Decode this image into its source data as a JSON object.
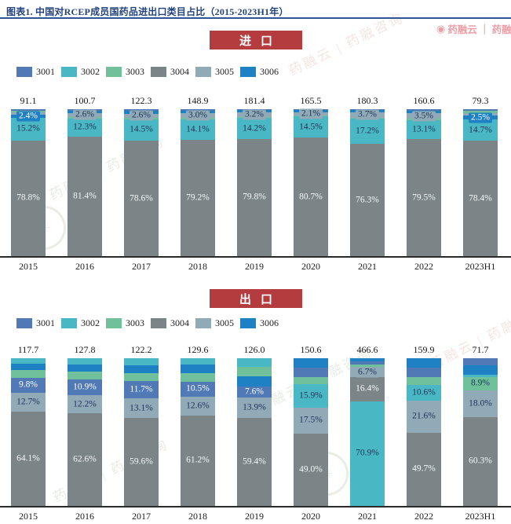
{
  "title": "图表1. 中国对RCEP成员国药品进出口类目占比（2015-2023H1年）",
  "watermarks": {
    "brand_header": "药融云 ｜ 药融咨询",
    "diagonal": "药融云 | 药融咨询",
    "stamp_glyph": "✳"
  },
  "colors": {
    "3001": "#5079b5",
    "3002": "#4ab7c4",
    "3003": "#6fc09b",
    "3004": "#7b8588",
    "3005": "#90aab8",
    "3006": "#1e81c4"
  },
  "label_text_colors": {
    "3001": "#ffffff",
    "3002": "#1d3557",
    "3003": "#1d3557",
    "3004": "#f5f7f8",
    "3005": "#1d3557",
    "3006": "#ffffff"
  },
  "chart_data": [
    {
      "type": "bar",
      "stacked": true,
      "percent_stacked": true,
      "banner": "进口",
      "legend": [
        "3001",
        "3002",
        "3003",
        "3004",
        "3005",
        "3006"
      ],
      "categories": [
        "2015",
        "2016",
        "2017",
        "2018",
        "2019",
        "2020",
        "2021",
        "2022",
        "2023H1"
      ],
      "totals": [
        "91.1",
        "100.7",
        "122.3",
        "148.9",
        "181.4",
        "165.5",
        "180.3",
        "160.6",
        "79.3"
      ],
      "series": [
        {
          "name": "3001",
          "values": [
            0.8,
            0.9,
            1.1,
            0.9,
            0.6,
            0.6,
            0.6,
            0.9,
            1.0
          ]
        },
        {
          "name": "3002",
          "values": [
            15.2,
            12.3,
            14.5,
            14.1,
            14.2,
            14.5,
            17.2,
            13.1,
            14.7
          ]
        },
        {
          "name": "3003",
          "values": [
            1.2,
            1.0,
            1.2,
            1.0,
            0.8,
            0.7,
            0.8,
            1.0,
            1.4
          ]
        },
        {
          "name": "3004",
          "values": [
            78.8,
            81.4,
            78.6,
            79.2,
            79.8,
            80.7,
            76.3,
            79.5,
            78.4
          ]
        },
        {
          "name": "3005",
          "values": [
            1.6,
            2.6,
            2.6,
            3.0,
            3.2,
            2.1,
            3.7,
            3.5,
            2.0
          ]
        },
        {
          "name": "3006",
          "values": [
            2.4,
            1.8,
            2.0,
            1.8,
            1.4,
            1.4,
            1.4,
            2.0,
            2.5
          ]
        }
      ],
      "bars": [
        {
          "year": "2015",
          "total": "91.1",
          "segments": [
            {
              "s": "3004",
              "v": 78.8,
              "label": "78.8%"
            },
            {
              "s": "3002",
              "v": 15.2,
              "label": "15.2%"
            },
            {
              "s": "3006",
              "v": 2.4,
              "label": "2.4%"
            },
            {
              "s": "3005",
              "v": 1.6,
              "label": ""
            },
            {
              "s": "3003",
              "v": 1.2,
              "label": ""
            },
            {
              "s": "3001",
              "v": 0.8,
              "label": ""
            }
          ]
        },
        {
          "year": "2016",
          "total": "100.7",
          "segments": [
            {
              "s": "3004",
              "v": 81.4,
              "label": "81.4%"
            },
            {
              "s": "3002",
              "v": 12.3,
              "label": "12.3%"
            },
            {
              "s": "3003",
              "v": 1.0,
              "label": ""
            },
            {
              "s": "3005",
              "v": 2.6,
              "label": "2.6%"
            },
            {
              "s": "3006",
              "v": 1.8,
              "label": ""
            },
            {
              "s": "3001",
              "v": 0.9,
              "label": ""
            }
          ]
        },
        {
          "year": "2017",
          "total": "122.3",
          "segments": [
            {
              "s": "3004",
              "v": 78.6,
              "label": "78.6%"
            },
            {
              "s": "3002",
              "v": 14.5,
              "label": "14.5%"
            },
            {
              "s": "3003",
              "v": 1.2,
              "label": ""
            },
            {
              "s": "3005",
              "v": 2.6,
              "label": "2.6%"
            },
            {
              "s": "3006",
              "v": 2.0,
              "label": ""
            },
            {
              "s": "3001",
              "v": 1.1,
              "label": ""
            }
          ]
        },
        {
          "year": "2018",
          "total": "148.9",
          "segments": [
            {
              "s": "3004",
              "v": 79.2,
              "label": "79.2%"
            },
            {
              "s": "3002",
              "v": 14.1,
              "label": "14.1%"
            },
            {
              "s": "3003",
              "v": 1.0,
              "label": ""
            },
            {
              "s": "3005",
              "v": 3.0,
              "label": "3.0%"
            },
            {
              "s": "3006",
              "v": 1.8,
              "label": ""
            },
            {
              "s": "3001",
              "v": 0.9,
              "label": ""
            }
          ]
        },
        {
          "year": "2019",
          "total": "181.4",
          "segments": [
            {
              "s": "3004",
              "v": 79.8,
              "label": "79.8%"
            },
            {
              "s": "3002",
              "v": 14.2,
              "label": "14.2%"
            },
            {
              "s": "3003",
              "v": 0.8,
              "label": ""
            },
            {
              "s": "3005",
              "v": 3.2,
              "label": "3.2%"
            },
            {
              "s": "3006",
              "v": 1.4,
              "label": ""
            },
            {
              "s": "3001",
              "v": 0.6,
              "label": ""
            }
          ]
        },
        {
          "year": "2020",
          "total": "165.5",
          "segments": [
            {
              "s": "3004",
              "v": 80.7,
              "label": "80.7%"
            },
            {
              "s": "3002",
              "v": 14.5,
              "label": "14.5%"
            },
            {
              "s": "3003",
              "v": 0.7,
              "label": ""
            },
            {
              "s": "3005",
              "v": 2.1,
              "label": "2.1%"
            },
            {
              "s": "3006",
              "v": 1.4,
              "label": ""
            },
            {
              "s": "3001",
              "v": 0.6,
              "label": ""
            }
          ]
        },
        {
          "year": "2021",
          "total": "180.3",
          "segments": [
            {
              "s": "3004",
              "v": 76.3,
              "label": "76.3%"
            },
            {
              "s": "3002",
              "v": 17.2,
              "label": "17.2%"
            },
            {
              "s": "3003",
              "v": 0.8,
              "label": ""
            },
            {
              "s": "3005",
              "v": 3.7,
              "label": "3.7%"
            },
            {
              "s": "3006",
              "v": 1.4,
              "label": ""
            },
            {
              "s": "3001",
              "v": 0.6,
              "label": ""
            }
          ]
        },
        {
          "year": "2022",
          "total": "160.6",
          "segments": [
            {
              "s": "3004",
              "v": 79.5,
              "label": "79.5%"
            },
            {
              "s": "3002",
              "v": 13.1,
              "label": "13.1%"
            },
            {
              "s": "3003",
              "v": 1.0,
              "label": ""
            },
            {
              "s": "3005",
              "v": 3.5,
              "label": "3.5%"
            },
            {
              "s": "3006",
              "v": 2.0,
              "label": ""
            },
            {
              "s": "3001",
              "v": 0.9,
              "label": ""
            }
          ]
        },
        {
          "year": "2023H1",
          "total": "79.3",
          "segments": [
            {
              "s": "3004",
              "v": 78.4,
              "label": "78.4%"
            },
            {
              "s": "3002",
              "v": 14.7,
              "label": "14.7%"
            },
            {
              "s": "3006",
              "v": 2.5,
              "label": "2.5%"
            },
            {
              "s": "3005",
              "v": 2.0,
              "label": ""
            },
            {
              "s": "3003",
              "v": 1.4,
              "label": ""
            },
            {
              "s": "3001",
              "v": 1.0,
              "label": ""
            }
          ]
        }
      ]
    },
    {
      "type": "bar",
      "stacked": true,
      "percent_stacked": true,
      "banner": "出口",
      "legend": [
        "3001",
        "3002",
        "3003",
        "3004",
        "3005",
        "3006"
      ],
      "categories": [
        "2015",
        "2016",
        "2017",
        "2018",
        "2019",
        "2020",
        "2021",
        "2022",
        "2023H1"
      ],
      "totals": [
        "117.7",
        "127.8",
        "122.2",
        "129.6",
        "126.0",
        "150.6",
        "466.6",
        "159.9",
        "71.7"
      ],
      "series": [
        {
          "name": "3001",
          "values": [
            9.8,
            10.9,
            11.7,
            10.5,
            7.6,
            6.2,
            2.0,
            6.0,
            5.0
          ]
        },
        {
          "name": "3002",
          "values": [
            3.6,
            4.0,
            4.5,
            4.5,
            5.6,
            15.9,
            70.9,
            10.6,
            1.8
          ]
        },
        {
          "name": "3003",
          "values": [
            5.2,
            5.5,
            5.8,
            5.8,
            6.5,
            5.0,
            1.8,
            5.6,
            8.9
          ]
        },
        {
          "name": "3004",
          "values": [
            64.1,
            62.6,
            59.6,
            61.2,
            59.4,
            49.0,
            16.4,
            49.7,
            60.3
          ]
        },
        {
          "name": "3005",
          "values": [
            12.7,
            12.2,
            13.1,
            12.6,
            13.9,
            17.5,
            6.7,
            21.6,
            18.0
          ]
        },
        {
          "name": "3006",
          "values": [
            4.6,
            4.8,
            5.3,
            5.4,
            7.0,
            6.4,
            2.2,
            6.5,
            6.0
          ]
        }
      ],
      "bars": [
        {
          "year": "2015",
          "total": "117.7",
          "segments": [
            {
              "s": "3004",
              "v": 64.1,
              "label": "64.1%"
            },
            {
              "s": "3005",
              "v": 12.7,
              "label": "12.7%"
            },
            {
              "s": "3001",
              "v": 9.8,
              "label": "9.8%"
            },
            {
              "s": "3003",
              "v": 5.2,
              "label": ""
            },
            {
              "s": "3006",
              "v": 4.6,
              "label": ""
            },
            {
              "s": "3002",
              "v": 3.6,
              "label": ""
            }
          ]
        },
        {
          "year": "2016",
          "total": "127.8",
          "segments": [
            {
              "s": "3004",
              "v": 62.6,
              "label": "62.6%"
            },
            {
              "s": "3005",
              "v": 12.2,
              "label": "12.2%"
            },
            {
              "s": "3001",
              "v": 10.9,
              "label": "10.9%"
            },
            {
              "s": "3003",
              "v": 5.5,
              "label": ""
            },
            {
              "s": "3006",
              "v": 4.8,
              "label": ""
            },
            {
              "s": "3002",
              "v": 4.0,
              "label": ""
            }
          ]
        },
        {
          "year": "2017",
          "total": "122.2",
          "segments": [
            {
              "s": "3004",
              "v": 59.6,
              "label": "59.6%"
            },
            {
              "s": "3005",
              "v": 13.1,
              "label": "13.1%"
            },
            {
              "s": "3001",
              "v": 11.7,
              "label": "11.7%"
            },
            {
              "s": "3003",
              "v": 5.8,
              "label": ""
            },
            {
              "s": "3006",
              "v": 5.3,
              "label": ""
            },
            {
              "s": "3002",
              "v": 4.5,
              "label": ""
            }
          ]
        },
        {
          "year": "2018",
          "total": "129.6",
          "segments": [
            {
              "s": "3004",
              "v": 61.2,
              "label": "61.2%"
            },
            {
              "s": "3005",
              "v": 12.6,
              "label": "12.6%"
            },
            {
              "s": "3001",
              "v": 10.5,
              "label": "10.5%"
            },
            {
              "s": "3003",
              "v": 5.8,
              "label": ""
            },
            {
              "s": "3006",
              "v": 5.4,
              "label": ""
            },
            {
              "s": "3002",
              "v": 4.5,
              "label": ""
            }
          ]
        },
        {
          "year": "2019",
          "total": "126.0",
          "segments": [
            {
              "s": "3004",
              "v": 59.4,
              "label": "59.4%"
            },
            {
              "s": "3005",
              "v": 13.9,
              "label": "13.9%"
            },
            {
              "s": "3001",
              "v": 7.6,
              "label": "7.6%"
            },
            {
              "s": "3006",
              "v": 7.0,
              "label": ""
            },
            {
              "s": "3003",
              "v": 6.5,
              "label": ""
            },
            {
              "s": "3002",
              "v": 5.6,
              "label": ""
            }
          ]
        },
        {
          "year": "2020",
          "total": "150.6",
          "segments": [
            {
              "s": "3004",
              "v": 49.0,
              "label": "49.0%"
            },
            {
              "s": "3005",
              "v": 17.5,
              "label": "17.5%"
            },
            {
              "s": "3002",
              "v": 15.9,
              "label": "15.9%"
            },
            {
              "s": "3003",
              "v": 5.0,
              "label": ""
            },
            {
              "s": "3001",
              "v": 6.2,
              "label": ""
            },
            {
              "s": "3006",
              "v": 6.4,
              "label": ""
            }
          ]
        },
        {
          "year": "2021",
          "total": "466.6",
          "segments": [
            {
              "s": "3002",
              "v": 70.9,
              "label": "70.9%"
            },
            {
              "s": "3004",
              "v": 16.4,
              "label": "16.4%"
            },
            {
              "s": "3005",
              "v": 6.7,
              "label": "6.7%"
            },
            {
              "s": "3003",
              "v": 1.8,
              "label": ""
            },
            {
              "s": "3001",
              "v": 2.0,
              "label": ""
            },
            {
              "s": "3006",
              "v": 2.2,
              "label": ""
            }
          ]
        },
        {
          "year": "2022",
          "total": "159.9",
          "segments": [
            {
              "s": "3004",
              "v": 49.7,
              "label": "49.7%"
            },
            {
              "s": "3005",
              "v": 21.6,
              "label": "21.6%"
            },
            {
              "s": "3002",
              "v": 10.6,
              "label": "10.6%"
            },
            {
              "s": "3003",
              "v": 5.6,
              "label": ""
            },
            {
              "s": "3001",
              "v": 6.0,
              "label": ""
            },
            {
              "s": "3006",
              "v": 6.5,
              "label": ""
            }
          ]
        },
        {
          "year": "2023H1",
          "total": "71.7",
          "segments": [
            {
              "s": "3004",
              "v": 60.3,
              "label": "60.3%"
            },
            {
              "s": "3005",
              "v": 18.0,
              "label": "18.0%"
            },
            {
              "s": "3003",
              "v": 8.9,
              "label": "8.9%"
            },
            {
              "s": "3002",
              "v": 1.8,
              "label": ""
            },
            {
              "s": "3006",
              "v": 6.0,
              "label": ""
            },
            {
              "s": "3001",
              "v": 5.0,
              "label": ""
            }
          ]
        }
      ]
    }
  ]
}
